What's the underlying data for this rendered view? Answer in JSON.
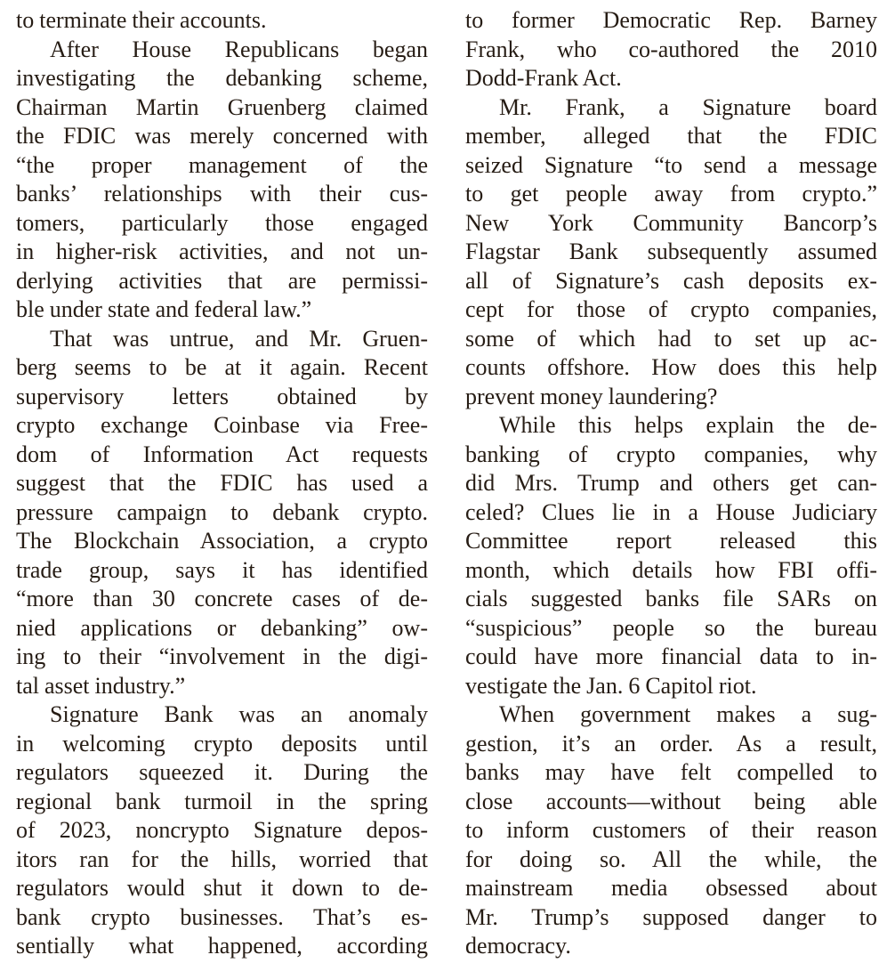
{
  "colors": {
    "text": "#261c14",
    "background": "#ffffff"
  },
  "document": {
    "type": "newspaper-article-excerpt",
    "columns": [
      {
        "blocks": [
          {
            "indent": false,
            "continues": false,
            "lines": [
              "to terminate their accounts."
            ]
          },
          {
            "indent": true,
            "continues": false,
            "lines": [
              "After House Republicans began",
              "investigating the debanking scheme,",
              "Chairman Martin Gruenberg claimed",
              "the FDIC was merely concerned with",
              "“the proper management of the",
              "banks’ relationships with their cus-",
              "tomers, particularly those engaged",
              "in higher-risk activities, and not un-",
              "derlying activities that are permissi-",
              "ble under state and federal law.”"
            ]
          },
          {
            "indent": true,
            "continues": false,
            "lines": [
              "That was untrue, and Mr. Gruen-",
              "berg seems to be at it again. Recent",
              "supervisory letters obtained by",
              "crypto exchange Coinbase via Free-",
              "dom of Information Act requests",
              "suggest that the FDIC has used a",
              "pressure campaign to debank crypto.",
              "The Blockchain Association, a crypto",
              "trade group, says it has identified",
              "“more than 30 concrete cases of de-",
              "nied applications or debanking” ow-",
              "ing to their “involvement in the digi-",
              "tal asset industry.”"
            ]
          },
          {
            "indent": true,
            "continues": true,
            "lines": [
              "Signature Bank was an anomaly",
              "in welcoming crypto deposits until",
              "regulators squeezed it. During the",
              "regional bank turmoil in the spring",
              "of 2023, noncrypto Signature depos-",
              "itors ran for the hills, worried that",
              "regulators would shut it down to de-",
              "bank crypto businesses. That’s es-",
              "sentially what happened, according"
            ]
          }
        ]
      },
      {
        "blocks": [
          {
            "indent": false,
            "continues": false,
            "lines": [
              "to former Democratic Rep. Barney",
              "Frank, who co-authored the 2010",
              "Dodd-Frank Act."
            ]
          },
          {
            "indent": true,
            "continues": false,
            "lines": [
              "Mr. Frank, a Signature board",
              "member, alleged that the FDIC",
              "seized Signature “to send a message",
              "to get people away from crypto.”",
              "New York Community Bancorp’s",
              "Flagstar Bank subsequently assumed",
              "all of Signature’s cash deposits ex-",
              "cept for those of crypto companies,",
              "some of which had to set up ac-",
              "counts offshore. How does this help",
              "prevent money laundering?"
            ]
          },
          {
            "indent": true,
            "continues": false,
            "lines": [
              "While this helps explain the de-",
              "banking of crypto companies, why",
              "did Mrs. Trump and others get can-",
              "celed? Clues lie in a House Judiciary",
              "Committee report released this",
              "month, which details how FBI offi-",
              "cials suggested banks file SARs on",
              "“suspicious” people so the bureau",
              "could have more financial data to in-",
              "vestigate the Jan. 6 Capitol riot."
            ]
          },
          {
            "indent": true,
            "continues": false,
            "lines": [
              "When government makes a sug-",
              "gestion, it’s an order. As a result,",
              "banks may have felt compelled to",
              "close accounts—without being able",
              "to inform customers of their reason",
              "for doing so. All the while, the",
              "mainstream media obsessed about",
              "Mr. Trump’s supposed danger to",
              "democracy."
            ]
          }
        ]
      }
    ]
  }
}
